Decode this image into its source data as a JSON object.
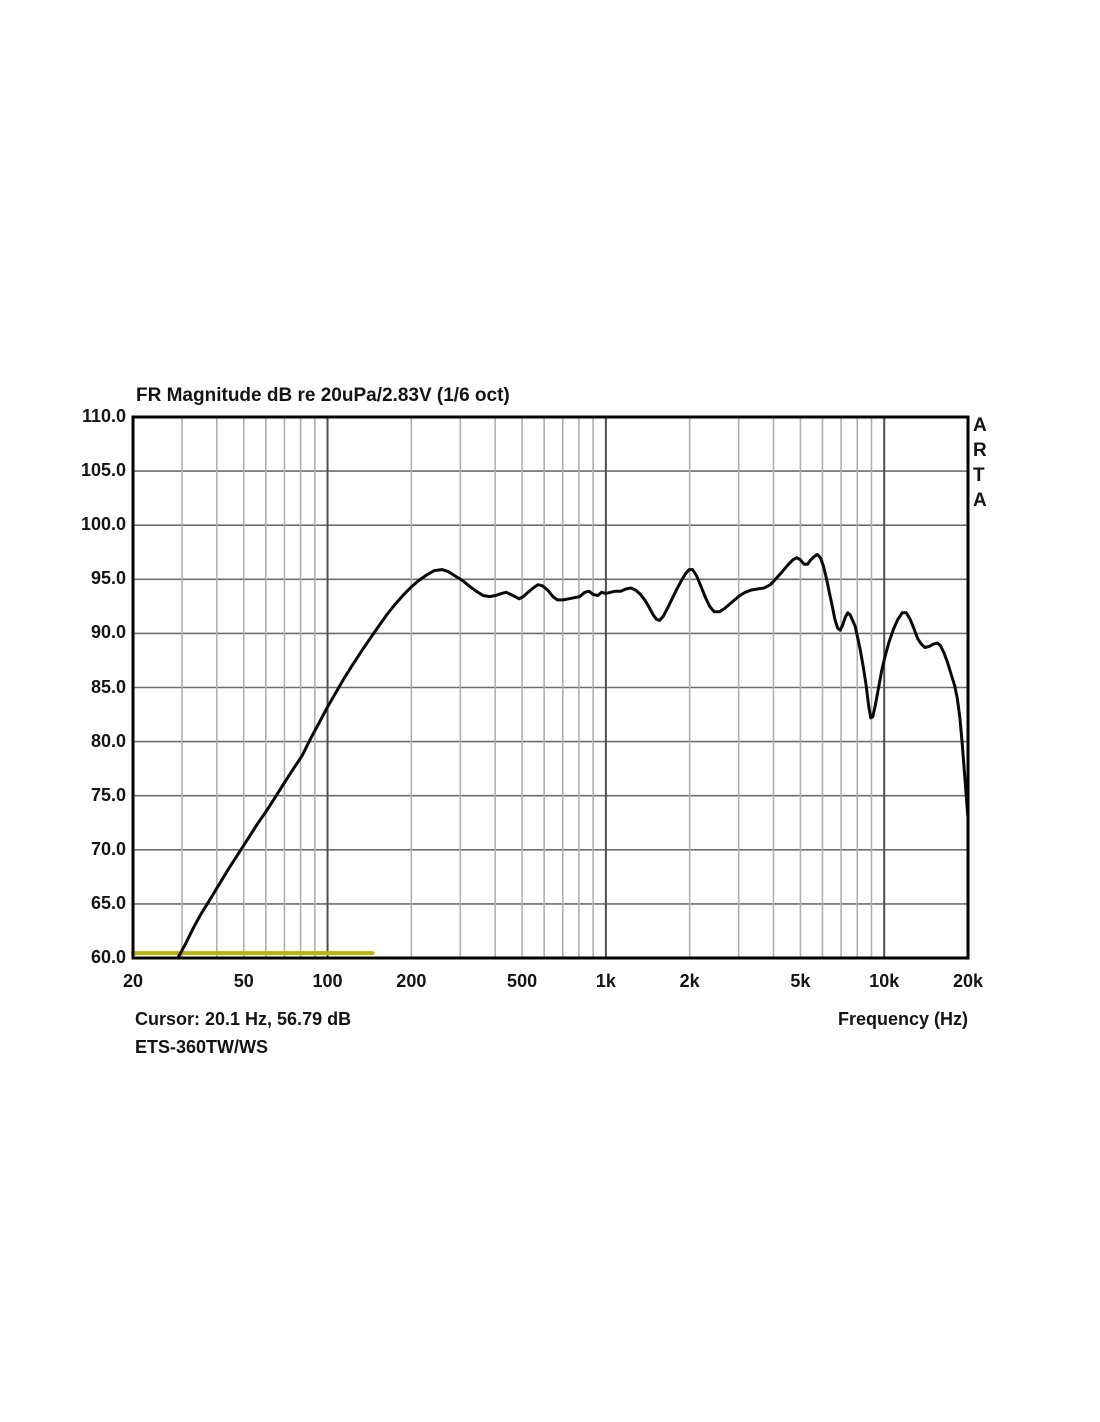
{
  "title": "FR Magnitude dB re 20uPa/2.83V (1/6 oct)",
  "branding": {
    "name": "ARTA",
    "letters": [
      "A",
      "R",
      "T",
      "A"
    ]
  },
  "footer": {
    "cursor_readout": "Cursor: 20.1 Hz, 56.79 dB",
    "device_label": "ETS-360TW/WS",
    "x_axis_label": "Frequency (Hz)"
  },
  "colors": {
    "background": "#ffffff",
    "text": "#141414",
    "frame": "#000000",
    "grid_horizontal": "#6e6e6e",
    "grid_minor_vertical": "#b0b0b0",
    "grid_major_vertical": "#4f4f4f",
    "curve": "#0a0a0a",
    "reference_line": "#bdb40a"
  },
  "chart_data": {
    "type": "line",
    "x_scale": "log",
    "x_range_hz": [
      20,
      20000
    ],
    "y_range_db": [
      60,
      110
    ],
    "y_tick_step_db": 5,
    "grid_on": true,
    "y_tick_labels": [
      "110.0",
      "105.0",
      "100.0",
      "95.0",
      "90.0",
      "85.0",
      "80.0",
      "75.0",
      "70.0",
      "65.0",
      "60.0"
    ],
    "x_tick_labels": [
      {
        "label": "20",
        "hz": 20
      },
      {
        "label": "50",
        "hz": 50
      },
      {
        "label": "100",
        "hz": 100
      },
      {
        "label": "200",
        "hz": 200
      },
      {
        "label": "500",
        "hz": 500
      },
      {
        "label": "1k",
        "hz": 1000
      },
      {
        "label": "2k",
        "hz": 2000
      },
      {
        "label": "5k",
        "hz": 5000
      },
      {
        "label": "10k",
        "hz": 10000
      },
      {
        "label": "20k",
        "hz": 20000
      }
    ],
    "grid_minor_hz": [
      30,
      40,
      50,
      60,
      70,
      80,
      90,
      200,
      300,
      400,
      500,
      600,
      700,
      800,
      900,
      2000,
      3000,
      4000,
      5000,
      6000,
      7000,
      8000,
      9000
    ],
    "grid_major_hz": [
      100,
      1000,
      10000
    ],
    "grid_horizontal_db": [
      65,
      70,
      75,
      80,
      85,
      90,
      95,
      100,
      105
    ],
    "series": [
      {
        "name": "frequency-response",
        "color": "#0a0a0a",
        "width": 3,
        "points_hz_db": [
          [
            29,
            60.0
          ],
          [
            31,
            61.4
          ],
          [
            33,
            62.8
          ],
          [
            35,
            64.0
          ],
          [
            38,
            65.5
          ],
          [
            41,
            66.9
          ],
          [
            44,
            68.2
          ],
          [
            48,
            69.7
          ],
          [
            52,
            71.1
          ],
          [
            56,
            72.4
          ],
          [
            60,
            73.5
          ],
          [
            65,
            74.9
          ],
          [
            70,
            76.2
          ],
          [
            75,
            77.4
          ],
          [
            81,
            78.7
          ],
          [
            87,
            80.3
          ],
          [
            94,
            81.9
          ],
          [
            100,
            83.2
          ],
          [
            107,
            84.5
          ],
          [
            115,
            85.9
          ],
          [
            123,
            87.1
          ],
          [
            132,
            88.3
          ],
          [
            142,
            89.5
          ],
          [
            152,
            90.6
          ],
          [
            163,
            91.7
          ],
          [
            175,
            92.7
          ],
          [
            188,
            93.6
          ],
          [
            200,
            94.3
          ],
          [
            213,
            94.9
          ],
          [
            227,
            95.4
          ],
          [
            242,
            95.8
          ],
          [
            258,
            95.9
          ],
          [
            272,
            95.7
          ],
          [
            288,
            95.3
          ],
          [
            305,
            94.9
          ],
          [
            322,
            94.4
          ],
          [
            342,
            93.9
          ],
          [
            362,
            93.5
          ],
          [
            382,
            93.4
          ],
          [
            402,
            93.5
          ],
          [
            422,
            93.7
          ],
          [
            438,
            93.8
          ],
          [
            455,
            93.6
          ],
          [
            472,
            93.4
          ],
          [
            488,
            93.2
          ],
          [
            505,
            93.4
          ],
          [
            525,
            93.8
          ],
          [
            548,
            94.2
          ],
          [
            570,
            94.5
          ],
          [
            592,
            94.4
          ],
          [
            618,
            94.0
          ],
          [
            645,
            93.4
          ],
          [
            670,
            93.1
          ],
          [
            700,
            93.1
          ],
          [
            735,
            93.2
          ],
          [
            770,
            93.3
          ],
          [
            805,
            93.4
          ],
          [
            840,
            93.8
          ],
          [
            870,
            93.9
          ],
          [
            900,
            93.6
          ],
          [
            935,
            93.5
          ],
          [
            965,
            93.8
          ],
          [
            1000,
            93.7
          ],
          [
            1040,
            93.8
          ],
          [
            1080,
            93.9
          ],
          [
            1130,
            93.9
          ],
          [
            1180,
            94.1
          ],
          [
            1230,
            94.2
          ],
          [
            1280,
            94.0
          ],
          [
            1330,
            93.6
          ],
          [
            1380,
            93.1
          ],
          [
            1430,
            92.4
          ],
          [
            1480,
            91.7
          ],
          [
            1520,
            91.3
          ],
          [
            1560,
            91.2
          ],
          [
            1610,
            91.6
          ],
          [
            1670,
            92.4
          ],
          [
            1730,
            93.2
          ],
          [
            1800,
            94.1
          ],
          [
            1870,
            94.9
          ],
          [
            1930,
            95.5
          ],
          [
            1990,
            95.9
          ],
          [
            2050,
            95.9
          ],
          [
            2120,
            95.3
          ],
          [
            2200,
            94.3
          ],
          [
            2280,
            93.3
          ],
          [
            2360,
            92.5
          ],
          [
            2450,
            92.0
          ],
          [
            2560,
            92.0
          ],
          [
            2670,
            92.3
          ],
          [
            2780,
            92.7
          ],
          [
            2900,
            93.1
          ],
          [
            3030,
            93.5
          ],
          [
            3170,
            93.8
          ],
          [
            3320,
            94.0
          ],
          [
            3500,
            94.1
          ],
          [
            3700,
            94.2
          ],
          [
            3900,
            94.5
          ],
          [
            4100,
            95.1
          ],
          [
            4300,
            95.7
          ],
          [
            4500,
            96.3
          ],
          [
            4700,
            96.8
          ],
          [
            4850,
            97.0
          ],
          [
            5000,
            96.8
          ],
          [
            5150,
            96.4
          ],
          [
            5300,
            96.4
          ],
          [
            5450,
            96.8
          ],
          [
            5600,
            97.1
          ],
          [
            5750,
            97.3
          ],
          [
            5900,
            97.0
          ],
          [
            6050,
            96.2
          ],
          [
            6200,
            95.1
          ],
          [
            6350,
            93.8
          ],
          [
            6500,
            92.6
          ],
          [
            6650,
            91.3
          ],
          [
            6800,
            90.5
          ],
          [
            6950,
            90.3
          ],
          [
            7100,
            90.8
          ],
          [
            7250,
            91.5
          ],
          [
            7400,
            91.9
          ],
          [
            7550,
            91.7
          ],
          [
            7700,
            91.2
          ],
          [
            7850,
            90.7
          ],
          [
            8000,
            89.8
          ],
          [
            8200,
            88.5
          ],
          [
            8400,
            87.0
          ],
          [
            8600,
            85.3
          ],
          [
            8800,
            83.2
          ],
          [
            8950,
            82.2
          ],
          [
            9100,
            82.3
          ],
          [
            9300,
            83.4
          ],
          [
            9550,
            85.0
          ],
          [
            9800,
            86.6
          ],
          [
            10100,
            88.0
          ],
          [
            10400,
            89.2
          ],
          [
            10800,
            90.4
          ],
          [
            11200,
            91.3
          ],
          [
            11600,
            91.9
          ],
          [
            12000,
            91.9
          ],
          [
            12400,
            91.3
          ],
          [
            12800,
            90.4
          ],
          [
            13200,
            89.5
          ],
          [
            13600,
            89.0
          ],
          [
            14000,
            88.7
          ],
          [
            14500,
            88.8
          ],
          [
            15000,
            89.0
          ],
          [
            15500,
            89.1
          ],
          [
            15900,
            88.9
          ],
          [
            16400,
            88.2
          ],
          [
            16900,
            87.3
          ],
          [
            17400,
            86.2
          ],
          [
            17900,
            85.2
          ],
          [
            18300,
            84.0
          ],
          [
            18700,
            82.2
          ],
          [
            19100,
            79.6
          ],
          [
            19500,
            76.6
          ],
          [
            19800,
            74.3
          ],
          [
            19950,
            73.2
          ]
        ]
      },
      {
        "name": "reference-floor",
        "color": "#bdb40a",
        "width": 4,
        "points_hz_db": [
          [
            20,
            60.45
          ],
          [
            145,
            60.45
          ]
        ]
      }
    ]
  }
}
